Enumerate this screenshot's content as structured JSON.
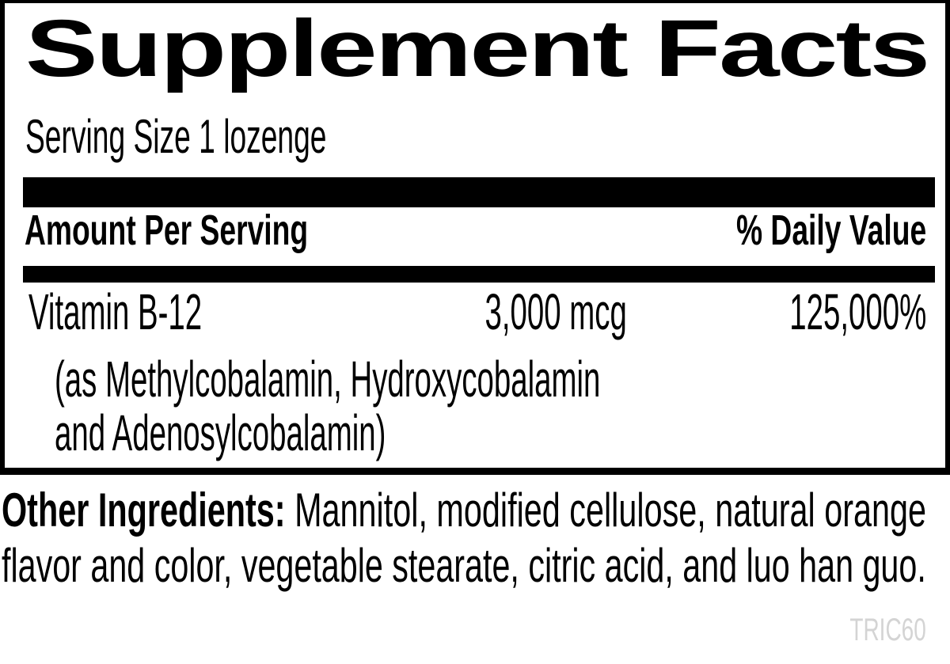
{
  "colors": {
    "ink": "#000000",
    "background": "#ffffff",
    "product_code_gray": "#d4d4d4"
  },
  "label": {
    "title": "Supplement Facts",
    "serving_size": "Serving Size 1 lozenge",
    "columns": {
      "amount": "Amount Per Serving",
      "daily_value": "% Daily Value"
    },
    "nutrients": [
      {
        "name": "Vitamin B-12",
        "amount": "3,000 mcg",
        "daily_value": "125,000%",
        "detail_lines": [
          "(as Methylcobalamin, Hydroxycobalamin",
          "and Adenosylcobalamin)"
        ]
      }
    ],
    "other_ingredients": {
      "lines": [
        {
          "bold": "Other Ingredients:",
          "text": "Mannitol, modified cellulose, natural orange"
        },
        {
          "bold": "",
          "text": "flavor and color, vegetable stearate, citric acid, and luo han guo."
        }
      ]
    },
    "product_code": "TRIC60"
  }
}
